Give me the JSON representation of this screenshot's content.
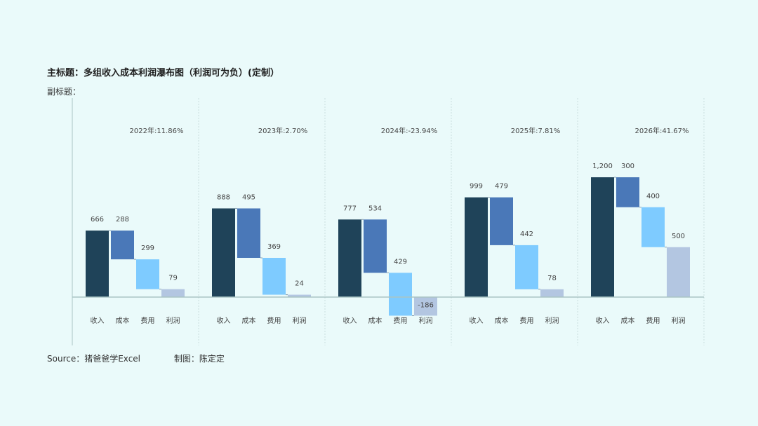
{
  "title": "主标题：多组收入成本利润瀑布图（利润可为负）(定制）",
  "subtitle": "副标题：",
  "footer": {
    "source": "Source：猪爸爸学Excel",
    "credit": "制图：陈定定"
  },
  "colors": {
    "收入": "#1f4359",
    "成本": "#4a78b8",
    "费用": "#7ecbff",
    "利润": "#b3c6e1",
    "background": "#eafafa",
    "divider": "#c9dede",
    "axis": "#a9c4c4"
  },
  "chart_data": {
    "type": "bar",
    "subtype": "waterfall",
    "categories": [
      "收入",
      "成本",
      "费用",
      "利润"
    ],
    "ylim": [
      -250,
      1350
    ],
    "grid": false,
    "groups": [
      {
        "label": "2022年:11.86%",
        "values": [
          666,
          288,
          299,
          79
        ],
        "data_labels": [
          "666",
          "288",
          "299",
          "79"
        ]
      },
      {
        "label": "2023年:2.70%",
        "values": [
          888,
          495,
          369,
          24
        ],
        "data_labels": [
          "888",
          "495",
          "369",
          "24"
        ]
      },
      {
        "label": "2024年:-23.94%",
        "values": [
          777,
          534,
          429,
          -186
        ],
        "data_labels": [
          "777",
          "534",
          "429",
          "-186"
        ]
      },
      {
        "label": "2025年:7.81%",
        "values": [
          999,
          479,
          442,
          78
        ],
        "data_labels": [
          "999",
          "479",
          "442",
          "78"
        ]
      },
      {
        "label": "2026年:41.67%",
        "values": [
          1200,
          300,
          400,
          500
        ],
        "data_labels": [
          "1,200",
          "300",
          "400",
          "500"
        ]
      }
    ]
  }
}
